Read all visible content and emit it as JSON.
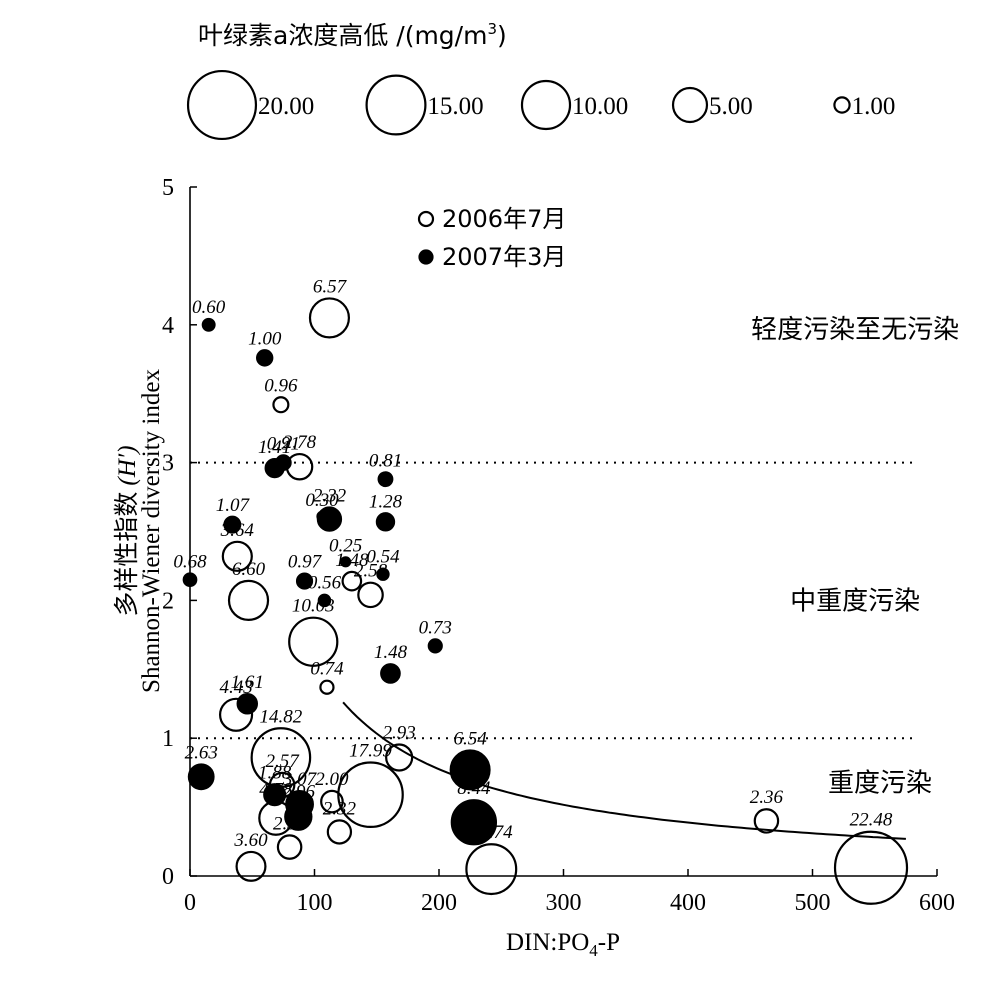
{
  "chart_data": {
    "type": "scatter",
    "title": "",
    "xlabel_main": "DIN:PO",
    "xlabel_sub": "4",
    "xlabel_tail": "-P",
    "ylabel_zh": "多样性指数",
    "ylabel_sym": "(H′)",
    "ylabel_en": "Shannon-Wiener diversity index",
    "xlim": [
      0,
      600
    ],
    "ylim": [
      0,
      5
    ],
    "xticks": [
      0,
      100,
      200,
      300,
      400,
      500,
      600
    ],
    "yticks": [
      0,
      1,
      2,
      3,
      4,
      5
    ],
    "size_legend": {
      "title": "叶绿素a浓度高低 /(mg/m",
      "title_sup": "3",
      "title_close": ")",
      "entries": [
        {
          "label": "20.00",
          "value": 20
        },
        {
          "label": "15.00",
          "value": 15
        },
        {
          "label": "10.00",
          "value": 10
        },
        {
          "label": "5.00",
          "value": 5
        },
        {
          "label": "1.00",
          "value": 1
        }
      ]
    },
    "series_legend": [
      {
        "name": "2006年7月",
        "style": "open"
      },
      {
        "name": "2007年3月",
        "style": "filled"
      }
    ],
    "reference_lines": [
      1,
      3
    ],
    "curve": {
      "k": 155,
      "x_start": 123,
      "x_end": 575
    },
    "regions": [
      {
        "label": "轻度污染至无污染",
        "x": 470,
        "y": 3.97
      },
      {
        "label": "中重度污染",
        "x": 470,
        "y": 2.0
      },
      {
        "label": "重度污染",
        "x": 490,
        "y": 0.68
      }
    ],
    "points": [
      {
        "x": 112,
        "y": 4.05,
        "chl": 6.57,
        "label": "6.57",
        "series": "2006年7月"
      },
      {
        "x": 15,
        "y": 4.0,
        "chl": 0.6,
        "label": "0.60",
        "series": "2007年3月"
      },
      {
        "x": 60,
        "y": 3.76,
        "chl": 1.0,
        "label": "1.00",
        "series": "2007年3月"
      },
      {
        "x": 73,
        "y": 3.42,
        "chl": 0.96,
        "label": "0.96",
        "series": "2006年7月"
      },
      {
        "x": 68,
        "y": 2.96,
        "chl": 1.41,
        "label": "1.41",
        "series": "2007年3月"
      },
      {
        "x": 75,
        "y": 3.0,
        "chl": 0.91,
        "label": "0.91",
        "series": "2007年3月"
      },
      {
        "x": 88,
        "y": 2.97,
        "chl": 2.78,
        "label": "2.78",
        "series": "2006年7月"
      },
      {
        "x": 157,
        "y": 2.88,
        "chl": 0.81,
        "label": "0.81",
        "series": "2007年3月"
      },
      {
        "x": 106,
        "y": 2.61,
        "chl": 0.3,
        "label": "0.30",
        "series": "2007年3月"
      },
      {
        "x": 112,
        "y": 2.59,
        "chl": 2.32,
        "label": "2.32",
        "series": "2007年3月"
      },
      {
        "x": 157,
        "y": 2.57,
        "chl": 1.28,
        "label": "1.28",
        "series": "2007年3月"
      },
      {
        "x": 34,
        "y": 2.55,
        "chl": 1.07,
        "label": "1.07",
        "series": "2007年3月"
      },
      {
        "x": 125,
        "y": 2.28,
        "chl": 0.25,
        "label": "0.25",
        "series": "2007年3月"
      },
      {
        "x": 38,
        "y": 2.32,
        "chl": 3.64,
        "label": "3.64",
        "series": "2006年7月"
      },
      {
        "x": 0,
        "y": 2.15,
        "chl": 0.68,
        "label": "0.68",
        "series": "2007年3月"
      },
      {
        "x": 92,
        "y": 2.14,
        "chl": 0.97,
        "label": "0.97",
        "series": "2007年3月"
      },
      {
        "x": 130,
        "y": 2.14,
        "chl": 1.48,
        "label": "1.48",
        "series": "2006年7月"
      },
      {
        "x": 155,
        "y": 2.19,
        "chl": 0.54,
        "label": "0.54",
        "series": "2007年3月"
      },
      {
        "x": 47,
        "y": 2.0,
        "chl": 6.6,
        "label": "6.60",
        "series": "2006年7月"
      },
      {
        "x": 108,
        "y": 2.0,
        "chl": 0.56,
        "label": "0.56",
        "series": "2007年3月"
      },
      {
        "x": 145,
        "y": 2.04,
        "chl": 2.58,
        "label": "2.58",
        "series": "2006年7月"
      },
      {
        "x": 99,
        "y": 1.7,
        "chl": 10.03,
        "label": "10.03",
        "series": "2006年7月"
      },
      {
        "x": 197,
        "y": 1.67,
        "chl": 0.73,
        "label": "0.73",
        "series": "2007年3月"
      },
      {
        "x": 161,
        "y": 1.47,
        "chl": 1.48,
        "label": "1.48",
        "series": "2007年3月"
      },
      {
        "x": 110,
        "y": 1.37,
        "chl": 0.74,
        "label": "0.74",
        "series": "2006年7月"
      },
      {
        "x": 37,
        "y": 1.17,
        "chl": 4.43,
        "label": "4.43",
        "series": "2006年7月"
      },
      {
        "x": 46,
        "y": 1.25,
        "chl": 1.61,
        "label": "1.61",
        "series": "2007年3月"
      },
      {
        "x": 73,
        "y": 0.86,
        "chl": 14.82,
        "label": "14.82",
        "series": "2006年7月"
      },
      {
        "x": 145,
        "y": 0.59,
        "chl": 17.99,
        "label": "17.99",
        "series": "2006年7月"
      },
      {
        "x": 168,
        "y": 0.86,
        "chl": 2.93,
        "label": "2.93",
        "series": "2006年7月"
      },
      {
        "x": 225,
        "y": 0.77,
        "chl": 6.54,
        "label": "6.54",
        "series": "2007年3月"
      },
      {
        "x": 9,
        "y": 0.72,
        "chl": 2.63,
        "label": "2.63",
        "series": "2007年3月"
      },
      {
        "x": 74,
        "y": 0.66,
        "chl": 2.57,
        "label": "2.57",
        "series": "2006年7月"
      },
      {
        "x": 68,
        "y": 0.59,
        "chl": 1.88,
        "label": "1.88",
        "series": "2007年3月"
      },
      {
        "x": 88,
        "y": 0.52,
        "chl": 3.07,
        "label": "3.07",
        "series": "2007年3月"
      },
      {
        "x": 114,
        "y": 0.54,
        "chl": 2.0,
        "label": "2.00",
        "series": "2006年7月"
      },
      {
        "x": 69,
        "y": 0.42,
        "chl": 4.78,
        "label": "4.78",
        "series": "2006年7月"
      },
      {
        "x": 87,
        "y": 0.43,
        "chl": 2.96,
        "label": "2.96",
        "series": "2007年3月"
      },
      {
        "x": 228,
        "y": 0.39,
        "chl": 8.44,
        "label": "8.44",
        "series": "2007年3月"
      },
      {
        "x": 120,
        "y": 0.32,
        "chl": 2.32,
        "label": "2.32",
        "series": "2006年7月"
      },
      {
        "x": 80,
        "y": 0.21,
        "chl": 2.37,
        "label": "2.37",
        "series": "2006年7月"
      },
      {
        "x": 49,
        "y": 0.07,
        "chl": 3.6,
        "label": "3.60",
        "series": "2006年7月"
      },
      {
        "x": 242,
        "y": 0.05,
        "chl": 10.74,
        "label": "10.74",
        "series": "2006年7月"
      },
      {
        "x": 463,
        "y": 0.4,
        "chl": 2.36,
        "label": "2.36",
        "series": "2006年7月"
      },
      {
        "x": 547,
        "y": 0.06,
        "chl": 22.48,
        "label": "22.48",
        "series": "2006年7月"
      }
    ]
  }
}
